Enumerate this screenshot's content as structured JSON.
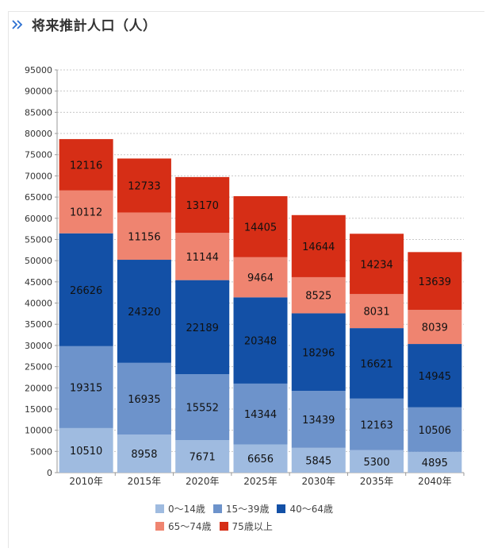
{
  "header": {
    "title": "将来推計人口（人）",
    "icon": "double-chevron-right-icon",
    "icon_color": "#2b6fd1"
  },
  "chart_data": {
    "type": "bar",
    "stacked": true,
    "categories": [
      "2010年",
      "2015年",
      "2020年",
      "2025年",
      "2030年",
      "2035年",
      "2040年"
    ],
    "series": [
      {
        "name": "0～14歳",
        "color": "#9fbbe0",
        "values": [
          10510,
          8958,
          7671,
          6656,
          5845,
          5300,
          4895
        ]
      },
      {
        "name": "15～39歳",
        "color": "#6d93cb",
        "values": [
          19315,
          16935,
          15552,
          14344,
          13439,
          12163,
          10506
        ]
      },
      {
        "name": "40～64歳",
        "color": "#1350a6",
        "values": [
          26626,
          24320,
          22189,
          20348,
          18296,
          16621,
          14945
        ]
      },
      {
        "name": "65～74歳",
        "color": "#ef8470",
        "values": [
          10112,
          11156,
          11144,
          9464,
          8525,
          8031,
          8039
        ]
      },
      {
        "name": "75歳以上",
        "color": "#d62e16",
        "values": [
          12116,
          12733,
          13170,
          14405,
          14644,
          14234,
          13639
        ]
      }
    ],
    "ylim": [
      0,
      95000
    ],
    "yticks": [
      0,
      5000,
      10000,
      15000,
      20000,
      25000,
      30000,
      35000,
      40000,
      45000,
      50000,
      55000,
      60000,
      65000,
      70000,
      75000,
      80000,
      85000,
      90000,
      95000
    ],
    "grid": true,
    "legend_position": "bottom"
  }
}
